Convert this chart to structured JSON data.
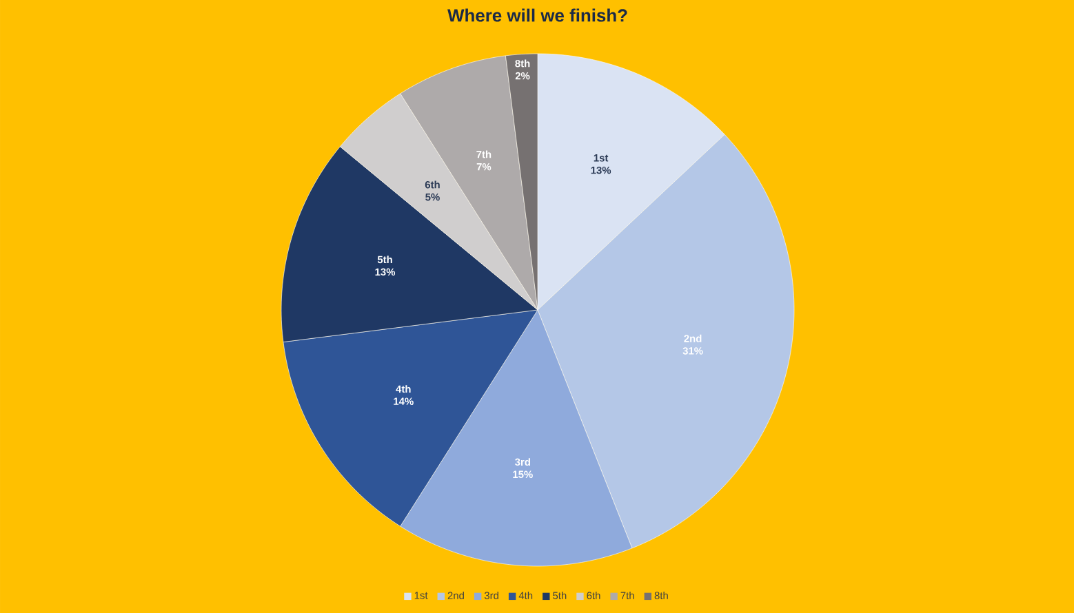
{
  "chart_data": {
    "type": "pie",
    "title": "Where will we finish?",
    "categories": [
      "1st",
      "2nd",
      "3rd",
      "4th",
      "5th",
      "6th",
      "7th",
      "8th"
    ],
    "values": [
      13,
      31,
      15,
      14,
      13,
      5,
      7,
      2
    ],
    "value_labels": [
      "13%",
      "31%",
      "15%",
      "14%",
      "13%",
      "5%",
      "7%",
      "2%"
    ],
    "colors": [
      "#dae3f3",
      "#b4c7e7",
      "#8faadc",
      "#2f5597",
      "#1f3864",
      "#d0cece",
      "#aeaaaa",
      "#767171"
    ],
    "legend": "bottom"
  }
}
